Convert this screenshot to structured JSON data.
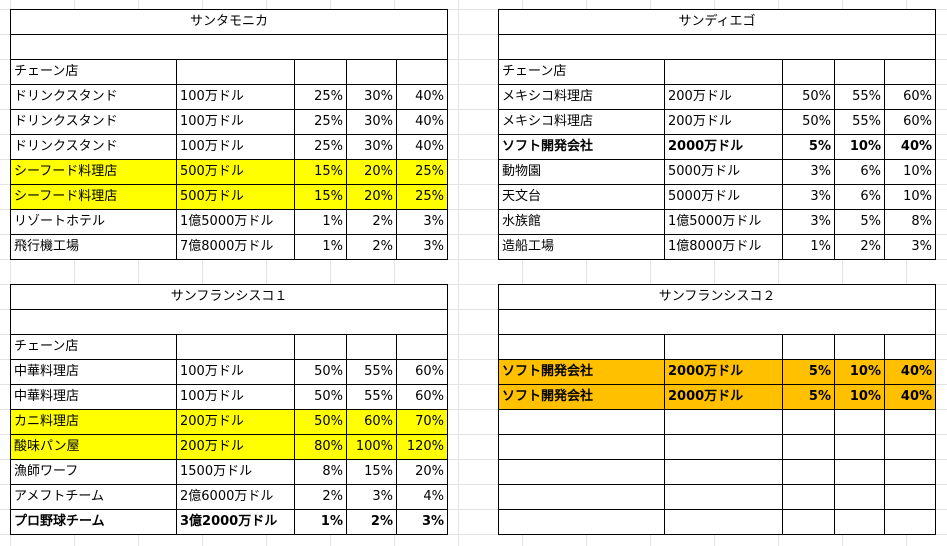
{
  "tables": [
    {
      "title": "サンタモニカ",
      "header": "チェーン店",
      "rows": [
        {
          "name": "ドリンクスタンド",
          "cost": "100万ドル",
          "p1": "25%",
          "p2": "30%",
          "p3": "40%",
          "style": ""
        },
        {
          "name": "ドリンクスタンド",
          "cost": "100万ドル",
          "p1": "25%",
          "p2": "30%",
          "p3": "40%",
          "style": ""
        },
        {
          "name": "ドリンクスタンド",
          "cost": "100万ドル",
          "p1": "25%",
          "p2": "30%",
          "p3": "40%",
          "style": ""
        },
        {
          "name": "シーフード料理店",
          "cost": "500万ドル",
          "p1": "15%",
          "p2": "20%",
          "p3": "25%",
          "style": "yellow"
        },
        {
          "name": "シーフード料理店",
          "cost": "500万ドル",
          "p1": "15%",
          "p2": "20%",
          "p3": "25%",
          "style": "yellow"
        },
        {
          "name": "リゾートホテル",
          "cost": "1億5000万ドル",
          "p1": "1%",
          "p2": "2%",
          "p3": "3%",
          "style": ""
        },
        {
          "name": "飛行機工場",
          "cost": "7億8000万ドル",
          "p1": "1%",
          "p2": "2%",
          "p3": "3%",
          "style": ""
        }
      ]
    },
    {
      "title": "サンディエゴ",
      "header": "チェーン店",
      "rows": [
        {
          "name": "メキシコ料理店",
          "cost": "200万ドル",
          "p1": "50%",
          "p2": "55%",
          "p3": "60%",
          "style": ""
        },
        {
          "name": "メキシコ料理店",
          "cost": "200万ドル",
          "p1": "50%",
          "p2": "55%",
          "p3": "60%",
          "style": ""
        },
        {
          "name": "ソフト開発会社",
          "cost": "2000万ドル",
          "p1": "5%",
          "p2": "10%",
          "p3": "40%",
          "style": "bold"
        },
        {
          "name": "動物園",
          "cost": "5000万ドル",
          "p1": "3%",
          "p2": "6%",
          "p3": "10%",
          "style": ""
        },
        {
          "name": "天文台",
          "cost": "5000万ドル",
          "p1": "3%",
          "p2": "6%",
          "p3": "10%",
          "style": ""
        },
        {
          "name": "水族館",
          "cost": "1億5000万ドル",
          "p1": "3%",
          "p2": "5%",
          "p3": "8%",
          "style": ""
        },
        {
          "name": "造船工場",
          "cost": "1億8000万ドル",
          "p1": "1%",
          "p2": "2%",
          "p3": "3%",
          "style": ""
        }
      ]
    },
    {
      "title": "サンフランシスコ１",
      "header": "チェーン店",
      "rows": [
        {
          "name": "中華料理店",
          "cost": "100万ドル",
          "p1": "50%",
          "p2": "55%",
          "p3": "60%",
          "style": ""
        },
        {
          "name": "中華料理店",
          "cost": "100万ドル",
          "p1": "50%",
          "p2": "55%",
          "p3": "60%",
          "style": ""
        },
        {
          "name": "カニ料理店",
          "cost": "200万ドル",
          "p1": "50%",
          "p2": "60%",
          "p3": "70%",
          "style": "yellow"
        },
        {
          "name": "酸味パン屋",
          "cost": "200万ドル",
          "p1": "80%",
          "p2": "100%",
          "p3": "120%",
          "style": "yellow"
        },
        {
          "name": "漁師ワーフ",
          "cost": "1500万ドル",
          "p1": "8%",
          "p2": "15%",
          "p3": "20%",
          "style": ""
        },
        {
          "name": "アメフトチーム",
          "cost": "2億6000万ドル",
          "p1": "2%",
          "p2": "3%",
          "p3": "4%",
          "style": ""
        },
        {
          "name": "プロ野球チーム",
          "cost": "3億2000万ドル",
          "p1": "1%",
          "p2": "2%",
          "p3": "3%",
          "style": "bold"
        }
      ]
    },
    {
      "title": "サンフランシスコ２",
      "header": "",
      "rows": [
        {
          "name": "ソフト開発会社",
          "cost": "2000万ドル",
          "p1": "5%",
          "p2": "10%",
          "p3": "40%",
          "style": "orange bold"
        },
        {
          "name": "ソフト開発会社",
          "cost": "2000万ドル",
          "p1": "5%",
          "p2": "10%",
          "p3": "40%",
          "style": "orange bold"
        },
        {
          "name": "",
          "cost": "",
          "p1": "",
          "p2": "",
          "p3": "",
          "style": ""
        },
        {
          "name": "",
          "cost": "",
          "p1": "",
          "p2": "",
          "p3": "",
          "style": ""
        },
        {
          "name": "",
          "cost": "",
          "p1": "",
          "p2": "",
          "p3": "",
          "style": ""
        },
        {
          "name": "",
          "cost": "",
          "p1": "",
          "p2": "",
          "p3": "",
          "style": ""
        },
        {
          "name": "",
          "cost": "",
          "p1": "",
          "p2": "",
          "p3": "",
          "style": ""
        }
      ]
    }
  ],
  "colors": {
    "yellow": "#ffff00",
    "orange": "#ffc000",
    "gridline": "#e3e3e3"
  }
}
